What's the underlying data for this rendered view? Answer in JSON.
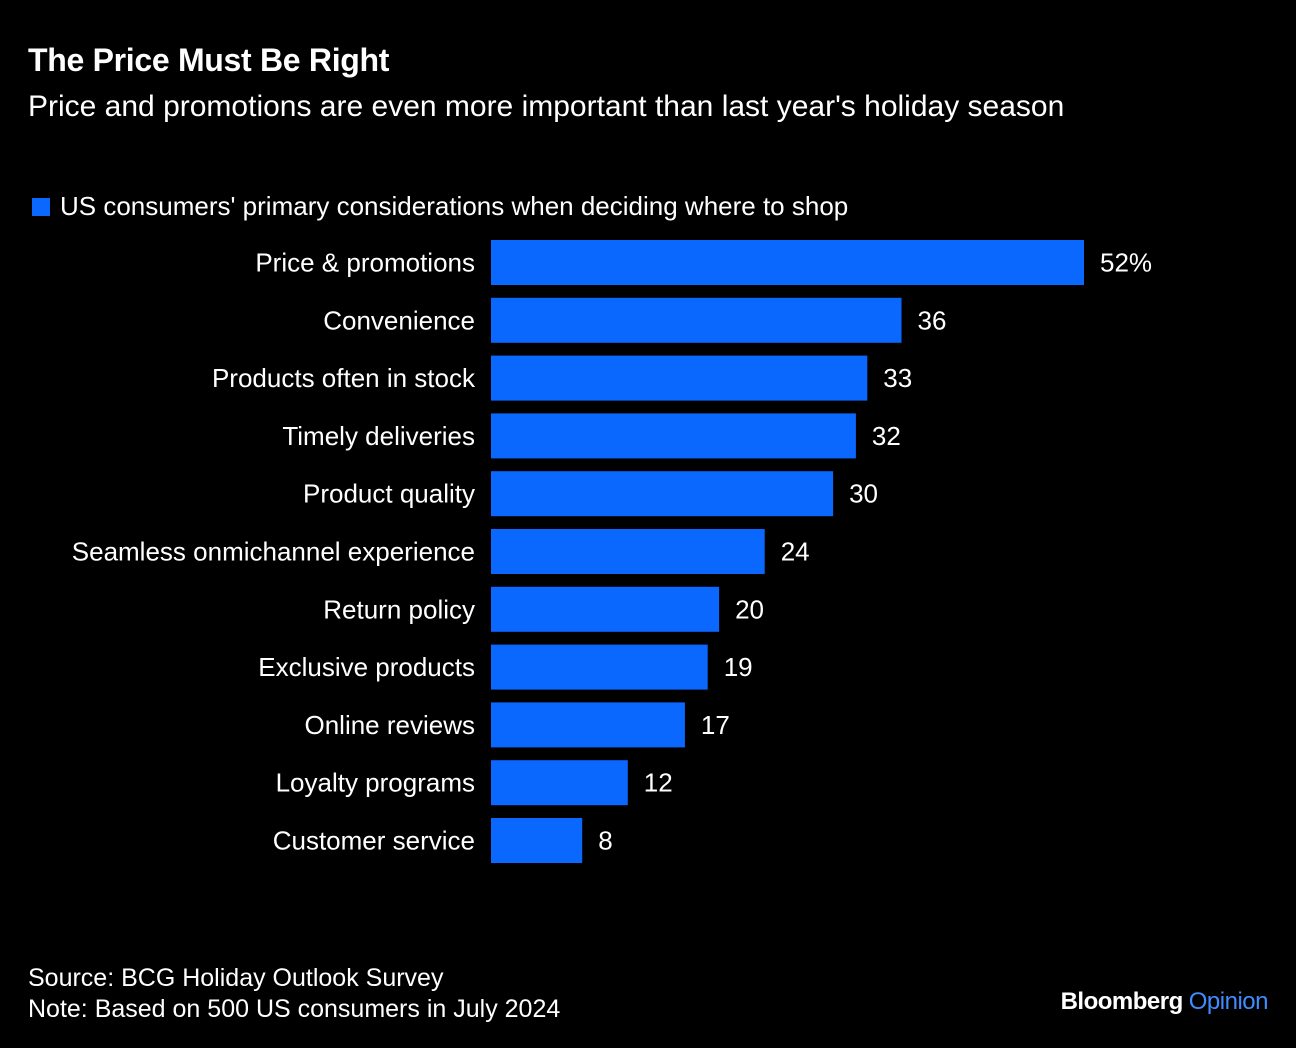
{
  "header": {
    "title": "The Price Must Be Right",
    "subtitle": "Price and promotions are even more important than last year's holiday season"
  },
  "chart_data": {
    "type": "bar",
    "orientation": "horizontal",
    "categories": [
      "Price & promotions",
      "Convenience",
      "Products often in stock",
      "Timely deliveries",
      "Product quality",
      "Seamless onmichannel experience",
      "Return policy",
      "Exclusive products",
      "Online reviews",
      "Loyalty programs",
      "Customer service"
    ],
    "series": [
      {
        "name": "US consumers' primary considerations when deciding where to shop",
        "values": [
          52,
          36,
          33,
          32,
          30,
          24,
          20,
          19,
          17,
          12,
          8
        ],
        "color": "#0a68ff"
      }
    ],
    "value_labels": [
      "52%",
      "36",
      "33",
      "32",
      "30",
      "24",
      "20",
      "19",
      "17",
      "12",
      "8"
    ],
    "xlim": [
      0,
      52
    ],
    "grid": false,
    "legend_position": "top-left"
  },
  "footer": {
    "source": "Source: BCG Holiday Outlook Survey",
    "note": "Note: Based on 500 US consumers in July 2024"
  },
  "brand": {
    "name": "Bloomberg",
    "accent": "Opinion",
    "accent_color": "#3f8cff"
  },
  "colors": {
    "background": "#000000",
    "text": "#ffffff",
    "bar": "#0a68ff"
  }
}
